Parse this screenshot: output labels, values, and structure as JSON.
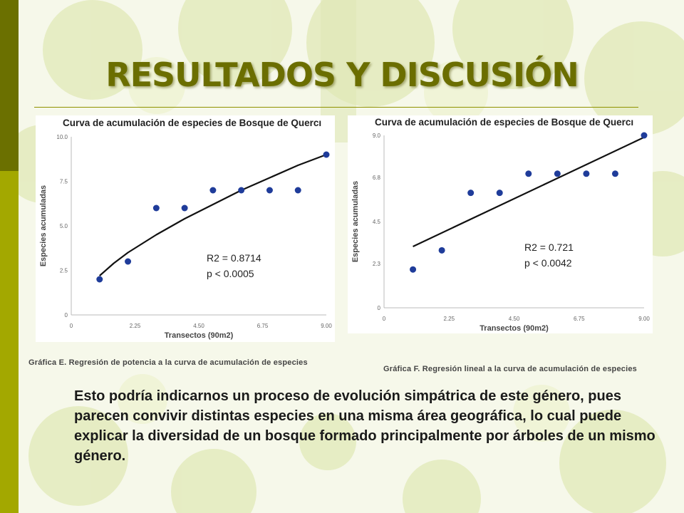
{
  "slide": {
    "title": "RESULTADOS Y DISCUSIÓN",
    "body_text": "Esto podría indicarnos un proceso de evolución simpátrica de este género, pues parecen convivir distintas especies en una misma área geográfica, lo cual puede explicar la diversidad de un bosque formado principalmente por árboles de un mismo género.",
    "colors": {
      "accent_dark": "#6b7000",
      "accent_light": "#a3a800",
      "title": "#6b6e00",
      "marker": "#1f3c9a",
      "fit_line": "#111111"
    }
  },
  "chart_data": [
    {
      "id": "chart-e",
      "type": "scatter",
      "title": "Curva de acumulación de especies de Bosque de Quercı",
      "xlabel": "Transectos (90m2)",
      "ylabel": "Especies acumuladas",
      "xlim": [
        0,
        9
      ],
      "ylim": [
        0,
        10
      ],
      "xticks": [
        0,
        2.25,
        4.5,
        6.75,
        9
      ],
      "xtick_labels": [
        "0",
        "2.25",
        "4.50",
        "6.75",
        "9.00"
      ],
      "yticks": [
        0,
        2.5,
        5,
        7.5,
        10
      ],
      "ytick_labels": [
        "0",
        "2.5",
        "5.0",
        "7.5",
        "10.0"
      ],
      "grid": false,
      "x": [
        1,
        2,
        3,
        4,
        5,
        6,
        7,
        8,
        9
      ],
      "y": [
        2,
        3,
        6,
        6,
        7,
        7,
        7,
        7,
        9
      ],
      "fit": {
        "kind": "power",
        "x": [
          1,
          1.5,
          2,
          3,
          4,
          5,
          6,
          7,
          8,
          9
        ],
        "y": [
          2.2,
          2.9,
          3.5,
          4.5,
          5.4,
          6.2,
          7.0,
          7.7,
          8.4,
          9.0
        ]
      },
      "stats": {
        "r2": "R2 = 0.8714",
        "p": "p < 0.0005"
      },
      "caption": "Gráfica E. Regresión de potencia a la curva de acumulación de especies"
    },
    {
      "id": "chart-f",
      "type": "scatter",
      "title": "Curva de acumulación de especies de Bosque de Quercı",
      "xlabel": "Transectos (90m2)",
      "ylabel": "Especies acumuladas",
      "xlim": [
        0,
        9
      ],
      "ylim": [
        0,
        9
      ],
      "xticks": [
        0,
        2.25,
        4.5,
        6.75,
        9
      ],
      "xtick_labels": [
        "0",
        "2.25",
        "4.50",
        "6.75",
        "9.00"
      ],
      "yticks": [
        0,
        2.3,
        4.5,
        6.8,
        9
      ],
      "ytick_labels": [
        "0",
        "2.3",
        "4.5",
        "6.8",
        "9.0"
      ],
      "grid": false,
      "x": [
        1,
        2,
        3,
        4,
        5,
        6,
        7,
        8,
        9
      ],
      "y": [
        2,
        3,
        6,
        6,
        7,
        7,
        7,
        7,
        9
      ],
      "fit": {
        "kind": "linear",
        "x": [
          1,
          9
        ],
        "y": [
          3.2,
          8.9
        ]
      },
      "stats": {
        "r2": "R2 = 0.721",
        "p": "p < 0.0042"
      },
      "caption": "Gráfica F. Regresión lineal a la curva de acumulación de especies"
    }
  ]
}
